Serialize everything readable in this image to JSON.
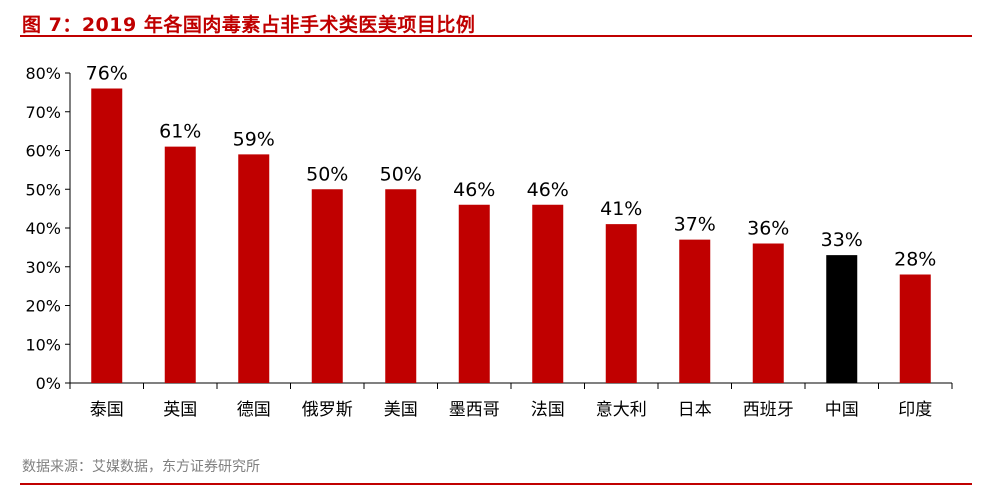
{
  "header": {
    "title": "图 7：2019 年各国肉毒素占非手术类医美项目比例"
  },
  "footer": {
    "source": "数据来源：艾媒数据，东方证券研究所"
  },
  "colors": {
    "accent": "#c00000",
    "bar_default": "#c00000",
    "bar_highlight": "#000000",
    "source_text": "#808080"
  },
  "chart_data": {
    "type": "bar",
    "categories": [
      "泰国",
      "英国",
      "德国",
      "俄罗斯",
      "美国",
      "墨西哥",
      "法国",
      "意大利",
      "日本",
      "西班牙",
      "中国",
      "印度"
    ],
    "values": [
      76,
      61,
      59,
      50,
      50,
      46,
      46,
      41,
      37,
      36,
      33,
      28
    ],
    "data_labels": [
      "76%",
      "61%",
      "59%",
      "50%",
      "50%",
      "46%",
      "46%",
      "41%",
      "37%",
      "36%",
      "33%",
      "28%"
    ],
    "ylim": [
      0,
      80
    ],
    "yticks": [
      0,
      10,
      20,
      30,
      40,
      50,
      60,
      70,
      80
    ],
    "ytick_labels": [
      "0%",
      "10%",
      "20%",
      "30%",
      "40%",
      "50%",
      "60%",
      "70%",
      "80%"
    ],
    "highlight_category": "中国",
    "grid": false,
    "legend": "none"
  }
}
